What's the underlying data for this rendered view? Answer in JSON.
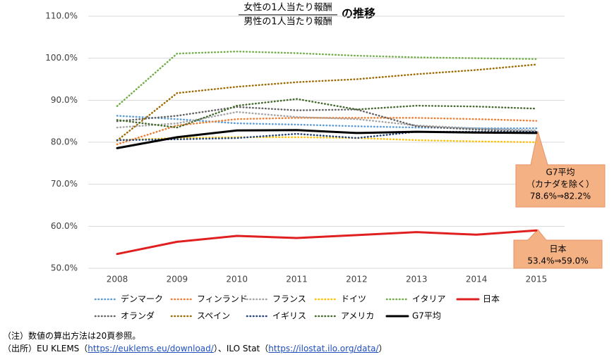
{
  "chart_data": {
    "type": "line",
    "title": {
      "numerator": "女性の1人当たり報酬",
      "denominator": "男性の1人当たり報酬",
      "suffix": "の推移"
    },
    "categories": [
      "2008",
      "2009",
      "2010",
      "2011",
      "2012",
      "2013",
      "2014",
      "2015"
    ],
    "ylim": [
      50,
      110
    ],
    "yticks": [
      {
        "value": 50,
        "label": "50.0%"
      },
      {
        "value": 60,
        "label": "60.0%"
      },
      {
        "value": 70,
        "label": "70.0%"
      },
      {
        "value": 80,
        "label": "80.0%"
      },
      {
        "value": 90,
        "label": "90.0%"
      },
      {
        "value": 100,
        "label": "100.0%"
      },
      {
        "value": 110,
        "label": "110.0%"
      }
    ],
    "grid": true,
    "series": [
      {
        "name": "デンマーク",
        "color": "#5b9bd5",
        "style": "dotted",
        "values": [
          86.3,
          85.5,
          84.5,
          84.2,
          83.8,
          83.5,
          83.3,
          83.3
        ]
      },
      {
        "name": "フィンランド",
        "color": "#ed7d31",
        "style": "dotted",
        "values": [
          79.5,
          84.0,
          85.5,
          85.8,
          85.8,
          85.8,
          85.5,
          85.1
        ]
      },
      {
        "name": "フランス",
        "color": "#a5a5a5",
        "style": "dotted",
        "values": [
          83.5,
          84.5,
          87.2,
          86.0,
          85.5,
          84.0,
          83.3,
          82.8
        ]
      },
      {
        "name": "ドイツ",
        "color": "#ffc000",
        "style": "dotted",
        "values": [
          80.5,
          81.0,
          81.2,
          81.2,
          81.0,
          80.5,
          80.2,
          80.0
        ]
      },
      {
        "name": "イタリア",
        "color": "#70ad47",
        "style": "dotted",
        "values": [
          88.6,
          101.1,
          101.6,
          101.2,
          100.6,
          100.2,
          100.0,
          99.8
        ]
      },
      {
        "name": "日本",
        "color": "#e02020",
        "style": "solid",
        "values": [
          53.4,
          56.3,
          57.7,
          57.2,
          57.9,
          58.6,
          58.0,
          59.0
        ]
      },
      {
        "name": "オランダ",
        "color": "#636363",
        "style": "dotted",
        "values": [
          85.0,
          86.3,
          88.4,
          87.6,
          87.8,
          83.8,
          83.0,
          82.5
        ]
      },
      {
        "name": "スペイン",
        "color": "#9e6a00",
        "style": "dotted",
        "values": [
          80.4,
          91.7,
          93.2,
          94.3,
          95.0,
          96.2,
          97.2,
          98.5
        ]
      },
      {
        "name": "イギリス",
        "color": "#264478",
        "style": "dotted",
        "values": [
          80.5,
          80.7,
          81.0,
          82.0,
          81.0,
          82.5,
          82.5,
          82.5
        ]
      },
      {
        "name": "アメリカ",
        "color": "#43682b",
        "style": "dotted",
        "values": [
          85.3,
          83.5,
          88.7,
          90.3,
          87.8,
          88.7,
          88.5,
          88.0
        ]
      },
      {
        "name": "G7平均",
        "color": "#000000",
        "style": "solid",
        "values": [
          78.6,
          81.2,
          82.8,
          82.9,
          82.2,
          82.5,
          82.3,
          82.2
        ]
      }
    ],
    "annotations": [
      {
        "lines": [
          "G7平均",
          "（カナダを除く）",
          "78.6%⇒82.2%"
        ],
        "color": "#f4b183"
      },
      {
        "lines": [
          "日本",
          "53.4%⇒59.0%"
        ],
        "color": "#f4b183"
      }
    ]
  },
  "notes": {
    "note": "（注）数値の算出方法は20頁参照。",
    "source_prefix": "（出所）EU KLEMS（",
    "link1": "https://euklems.eu/download/",
    "source_middle": "）、ILO Stat（",
    "link2": "https://ilostat.ilo.org/data/",
    "source_suffix": "）"
  }
}
